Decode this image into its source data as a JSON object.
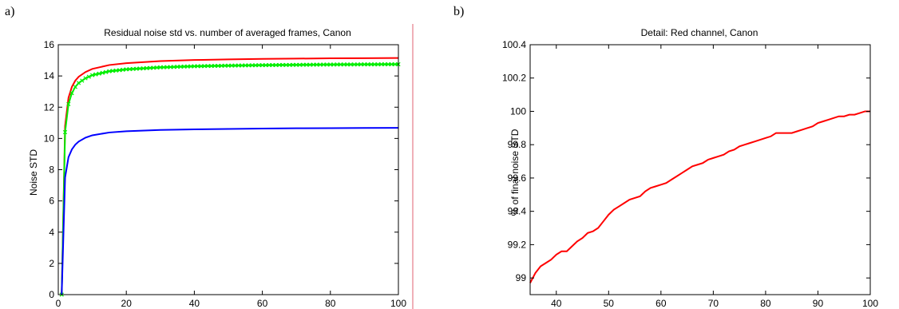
{
  "panels": [
    {
      "label": "a)"
    },
    {
      "label": "b)"
    }
  ],
  "colors": {
    "red": "#ff0000",
    "green": "#00ee00",
    "blue": "#0000ff",
    "divider": "#e06070"
  },
  "chart_data": [
    {
      "type": "line",
      "title": "Residual noise std vs. number of averaged frames, Canon",
      "xlabel": "",
      "ylabel": "Noise STD",
      "xlim": [
        0,
        100
      ],
      "ylim": [
        0,
        16
      ],
      "xticks": [
        0,
        20,
        40,
        60,
        80,
        100
      ],
      "yticks": [
        0,
        2,
        4,
        6,
        8,
        10,
        12,
        14,
        16
      ],
      "grid": false,
      "series": [
        {
          "color": "#ff0000",
          "marker": "none",
          "x": [
            1,
            2,
            3,
            4,
            5,
            6,
            8,
            10,
            15,
            20,
            30,
            40,
            50,
            60,
            70,
            80,
            90,
            100
          ],
          "y": [
            0,
            10.8,
            12.6,
            13.3,
            13.7,
            13.95,
            14.25,
            14.45,
            14.7,
            14.82,
            14.95,
            15.02,
            15.06,
            15.09,
            15.11,
            15.13,
            15.14,
            15.15
          ]
        },
        {
          "color": "#00ee00",
          "marker": "x",
          "x": [
            1,
            2,
            3,
            4,
            5,
            6,
            8,
            10,
            15,
            20,
            30,
            40,
            50,
            60,
            70,
            80,
            90,
            100
          ],
          "y": [
            0,
            10.4,
            12.2,
            12.9,
            13.3,
            13.55,
            13.85,
            14.05,
            14.3,
            14.42,
            14.55,
            14.62,
            14.66,
            14.69,
            14.71,
            14.73,
            14.74,
            14.75
          ]
        },
        {
          "color": "#0000ff",
          "marker": "none",
          "x": [
            1,
            2,
            3,
            4,
            5,
            6,
            8,
            10,
            15,
            20,
            30,
            40,
            50,
            60,
            70,
            80,
            90,
            100
          ],
          "y": [
            0,
            7.5,
            8.8,
            9.3,
            9.6,
            9.8,
            10.05,
            10.2,
            10.38,
            10.46,
            10.54,
            10.58,
            10.61,
            10.63,
            10.65,
            10.66,
            10.67,
            10.68
          ]
        }
      ]
    },
    {
      "type": "line",
      "title": "Detail: Red channel, Canon",
      "xlabel": "",
      "ylabel": "% of final noise STD",
      "xlim": [
        35,
        100
      ],
      "ylim": [
        98.9,
        100.4
      ],
      "xticks": [
        40,
        50,
        60,
        70,
        80,
        90,
        100
      ],
      "yticks": [
        99,
        99.2,
        99.4,
        99.6,
        99.8,
        100,
        100.2,
        100.4
      ],
      "yticklabels": [
        "99",
        "99.2",
        "99.4",
        "99.6",
        "99.8",
        "100",
        "100.2",
        "100.4"
      ],
      "grid": false,
      "series": [
        {
          "color": "#ff0000",
          "marker": "none",
          "x": [
            35,
            36,
            37,
            38,
            39,
            40,
            41,
            42,
            43,
            44,
            45,
            46,
            47,
            48,
            49,
            50,
            51,
            52,
            53,
            54,
            55,
            56,
            57,
            58,
            59,
            60,
            61,
            62,
            63,
            64,
            65,
            66,
            67,
            68,
            69,
            70,
            71,
            72,
            73,
            74,
            75,
            76,
            77,
            78,
            79,
            80,
            81,
            82,
            83,
            84,
            85,
            86,
            87,
            88,
            89,
            90,
            91,
            92,
            93,
            94,
            95,
            96,
            97,
            98,
            99,
            100
          ],
          "y": [
            98.97,
            99.03,
            99.07,
            99.09,
            99.11,
            99.14,
            99.16,
            99.16,
            99.19,
            99.22,
            99.24,
            99.27,
            99.28,
            99.3,
            99.34,
            99.38,
            99.41,
            99.43,
            99.45,
            99.47,
            99.48,
            99.49,
            99.52,
            99.54,
            99.55,
            99.56,
            99.57,
            99.59,
            99.61,
            99.63,
            99.65,
            99.67,
            99.68,
            99.69,
            99.71,
            99.72,
            99.73,
            99.74,
            99.76,
            99.77,
            99.79,
            99.8,
            99.81,
            99.82,
            99.83,
            99.84,
            99.85,
            99.87,
            99.87,
            99.87,
            99.87,
            99.88,
            99.89,
            99.9,
            99.91,
            99.93,
            99.94,
            99.95,
            99.96,
            99.97,
            99.97,
            99.98,
            99.98,
            99.99,
            100.0,
            100.0
          ]
        }
      ]
    }
  ]
}
